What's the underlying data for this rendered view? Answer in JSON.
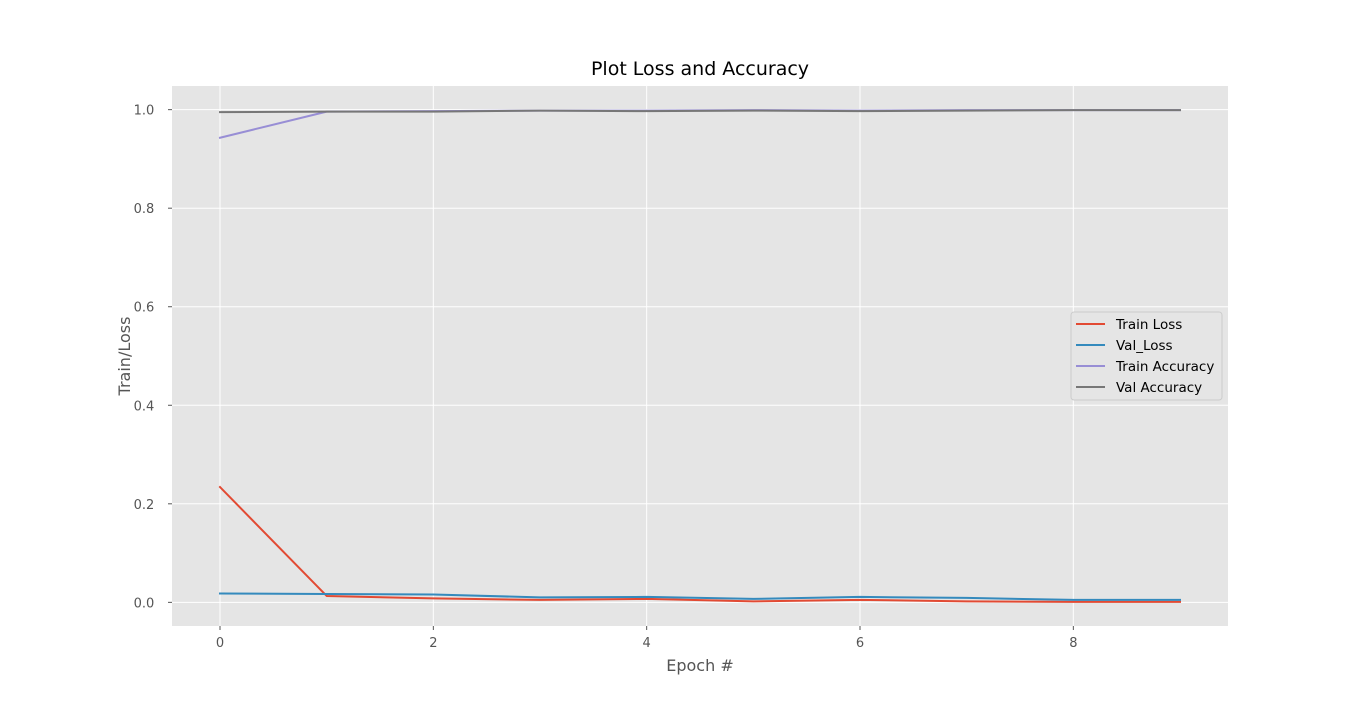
{
  "chart_data": {
    "type": "line",
    "title": "Plot Loss and Accuracy",
    "xlabel": "Epoch #",
    "ylabel": "Train/Loss",
    "x": [
      0,
      1,
      2,
      3,
      4,
      5,
      6,
      7,
      8,
      9
    ],
    "xlim": [
      -0.45,
      9.45
    ],
    "ylim": [
      -0.048,
      1.048
    ],
    "xticks": [
      0,
      2,
      4,
      6,
      8
    ],
    "xtick_labels": [
      "0",
      "2",
      "4",
      "6",
      "8"
    ],
    "yticks": [
      0.0,
      0.2,
      0.4,
      0.6,
      0.8,
      1.0
    ],
    "ytick_labels": [
      "0.0",
      "0.2",
      "0.4",
      "0.6",
      "0.8",
      "1.0"
    ],
    "grid": true,
    "legend_position": "center-right",
    "series": [
      {
        "name": "Train Loss",
        "color": "#E24A33",
        "values": [
          0.234,
          0.013,
          0.008,
          0.005,
          0.007,
          0.002,
          0.005,
          0.002,
          0.001,
          0.001
        ]
      },
      {
        "name": "Val_Loss",
        "color": "#348ABD",
        "values": [
          0.018,
          0.017,
          0.016,
          0.01,
          0.011,
          0.007,
          0.011,
          0.009,
          0.005,
          0.005
        ]
      },
      {
        "name": "Train Accuracy",
        "color": "#988ED5",
        "values": [
          0.943,
          0.996,
          0.997,
          0.998,
          0.998,
          0.999,
          0.998,
          0.999,
          0.999,
          0.999
        ]
      },
      {
        "name": "Val Accuracy",
        "color": "#777777",
        "values": [
          0.995,
          0.996,
          0.996,
          0.998,
          0.997,
          0.998,
          0.997,
          0.998,
          0.999,
          0.999
        ]
      }
    ]
  }
}
